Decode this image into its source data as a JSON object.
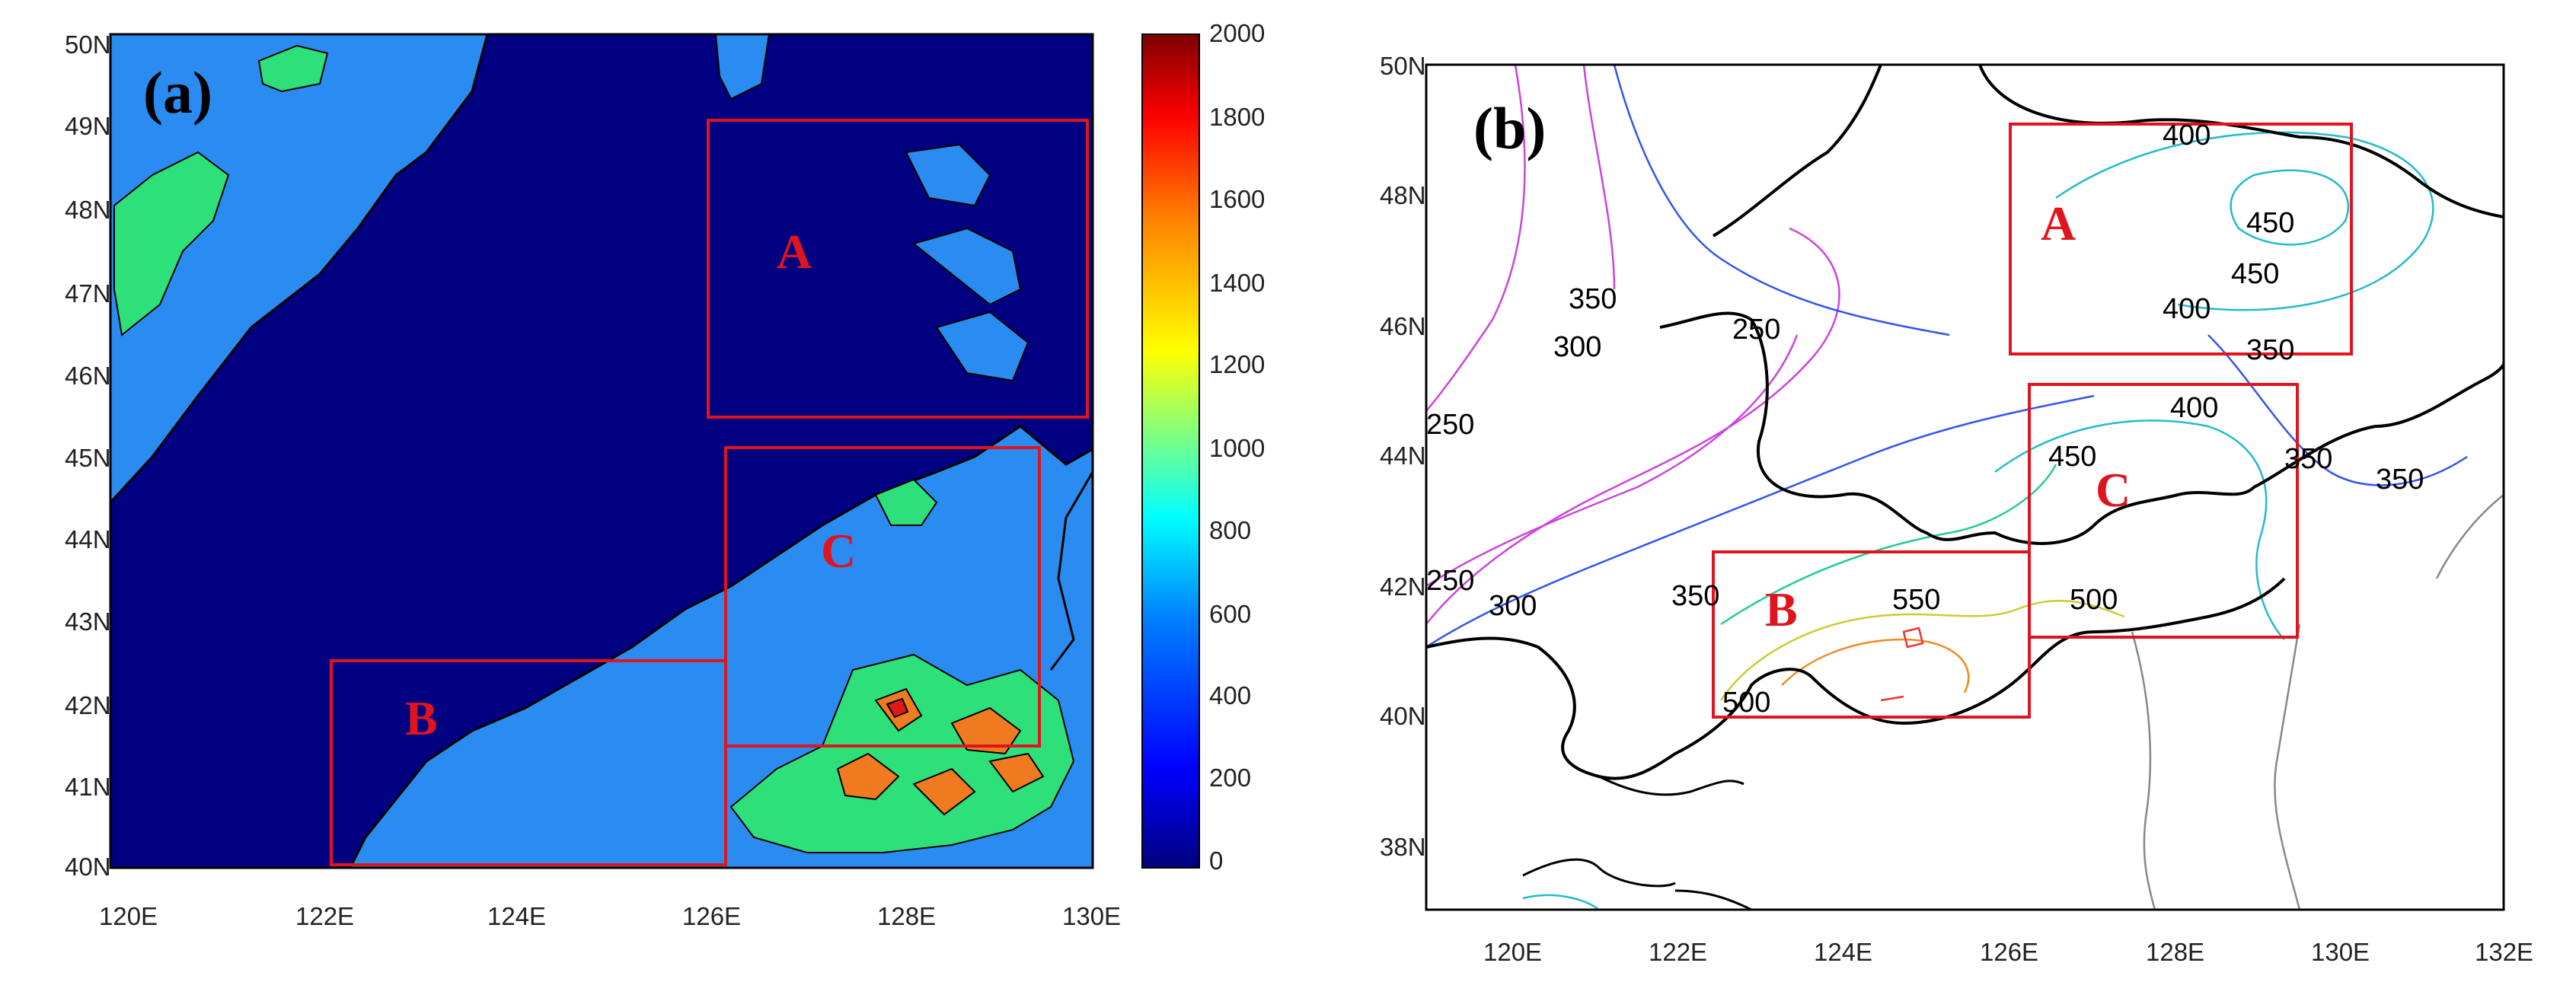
{
  "panel_a": {
    "label": "(a)",
    "lat_ticks": [
      "50N",
      "49N",
      "48N",
      "47N",
      "46N",
      "45N",
      "44N",
      "43N",
      "42N",
      "41N",
      "40N"
    ],
    "lon_ticks": [
      "120E",
      "122E",
      "124E",
      "126E",
      "128E",
      "130E"
    ],
    "regions": [
      "A",
      "B",
      "C"
    ],
    "colorbar": {
      "ticks": [
        "2000",
        "1800",
        "1600",
        "1400",
        "1200",
        "1000",
        "800",
        "600",
        "400",
        "200",
        "0"
      ],
      "colors": [
        "#00007f",
        "#0000ff",
        "#0080ff",
        "#00ffff",
        "#80ff80",
        "#ffff00",
        "#ff8000",
        "#ff0000",
        "#7f0000"
      ]
    }
  },
  "panel_b": {
    "label": "(b)",
    "lat_ticks": [
      "50N",
      "48N",
      "46N",
      "44N",
      "42N",
      "40N",
      "38N"
    ],
    "lon_ticks": [
      "120E",
      "122E",
      "124E",
      "126E",
      "128E",
      "130E",
      "132E"
    ],
    "regions": [
      "A",
      "B",
      "C"
    ],
    "contour_labels": [
      "400",
      "450",
      "450",
      "400",
      "350",
      "350",
      "300",
      "250",
      "250",
      "400",
      "450",
      "350",
      "350",
      "350",
      "250",
      "300",
      "350",
      "550",
      "500",
      "500"
    ]
  },
  "colors": {
    "region_box": "#e0141e",
    "background_low": "#000080",
    "mid_blue": "#2a8cf0",
    "green": "#2ee07a",
    "orange": "#f07a20"
  }
}
